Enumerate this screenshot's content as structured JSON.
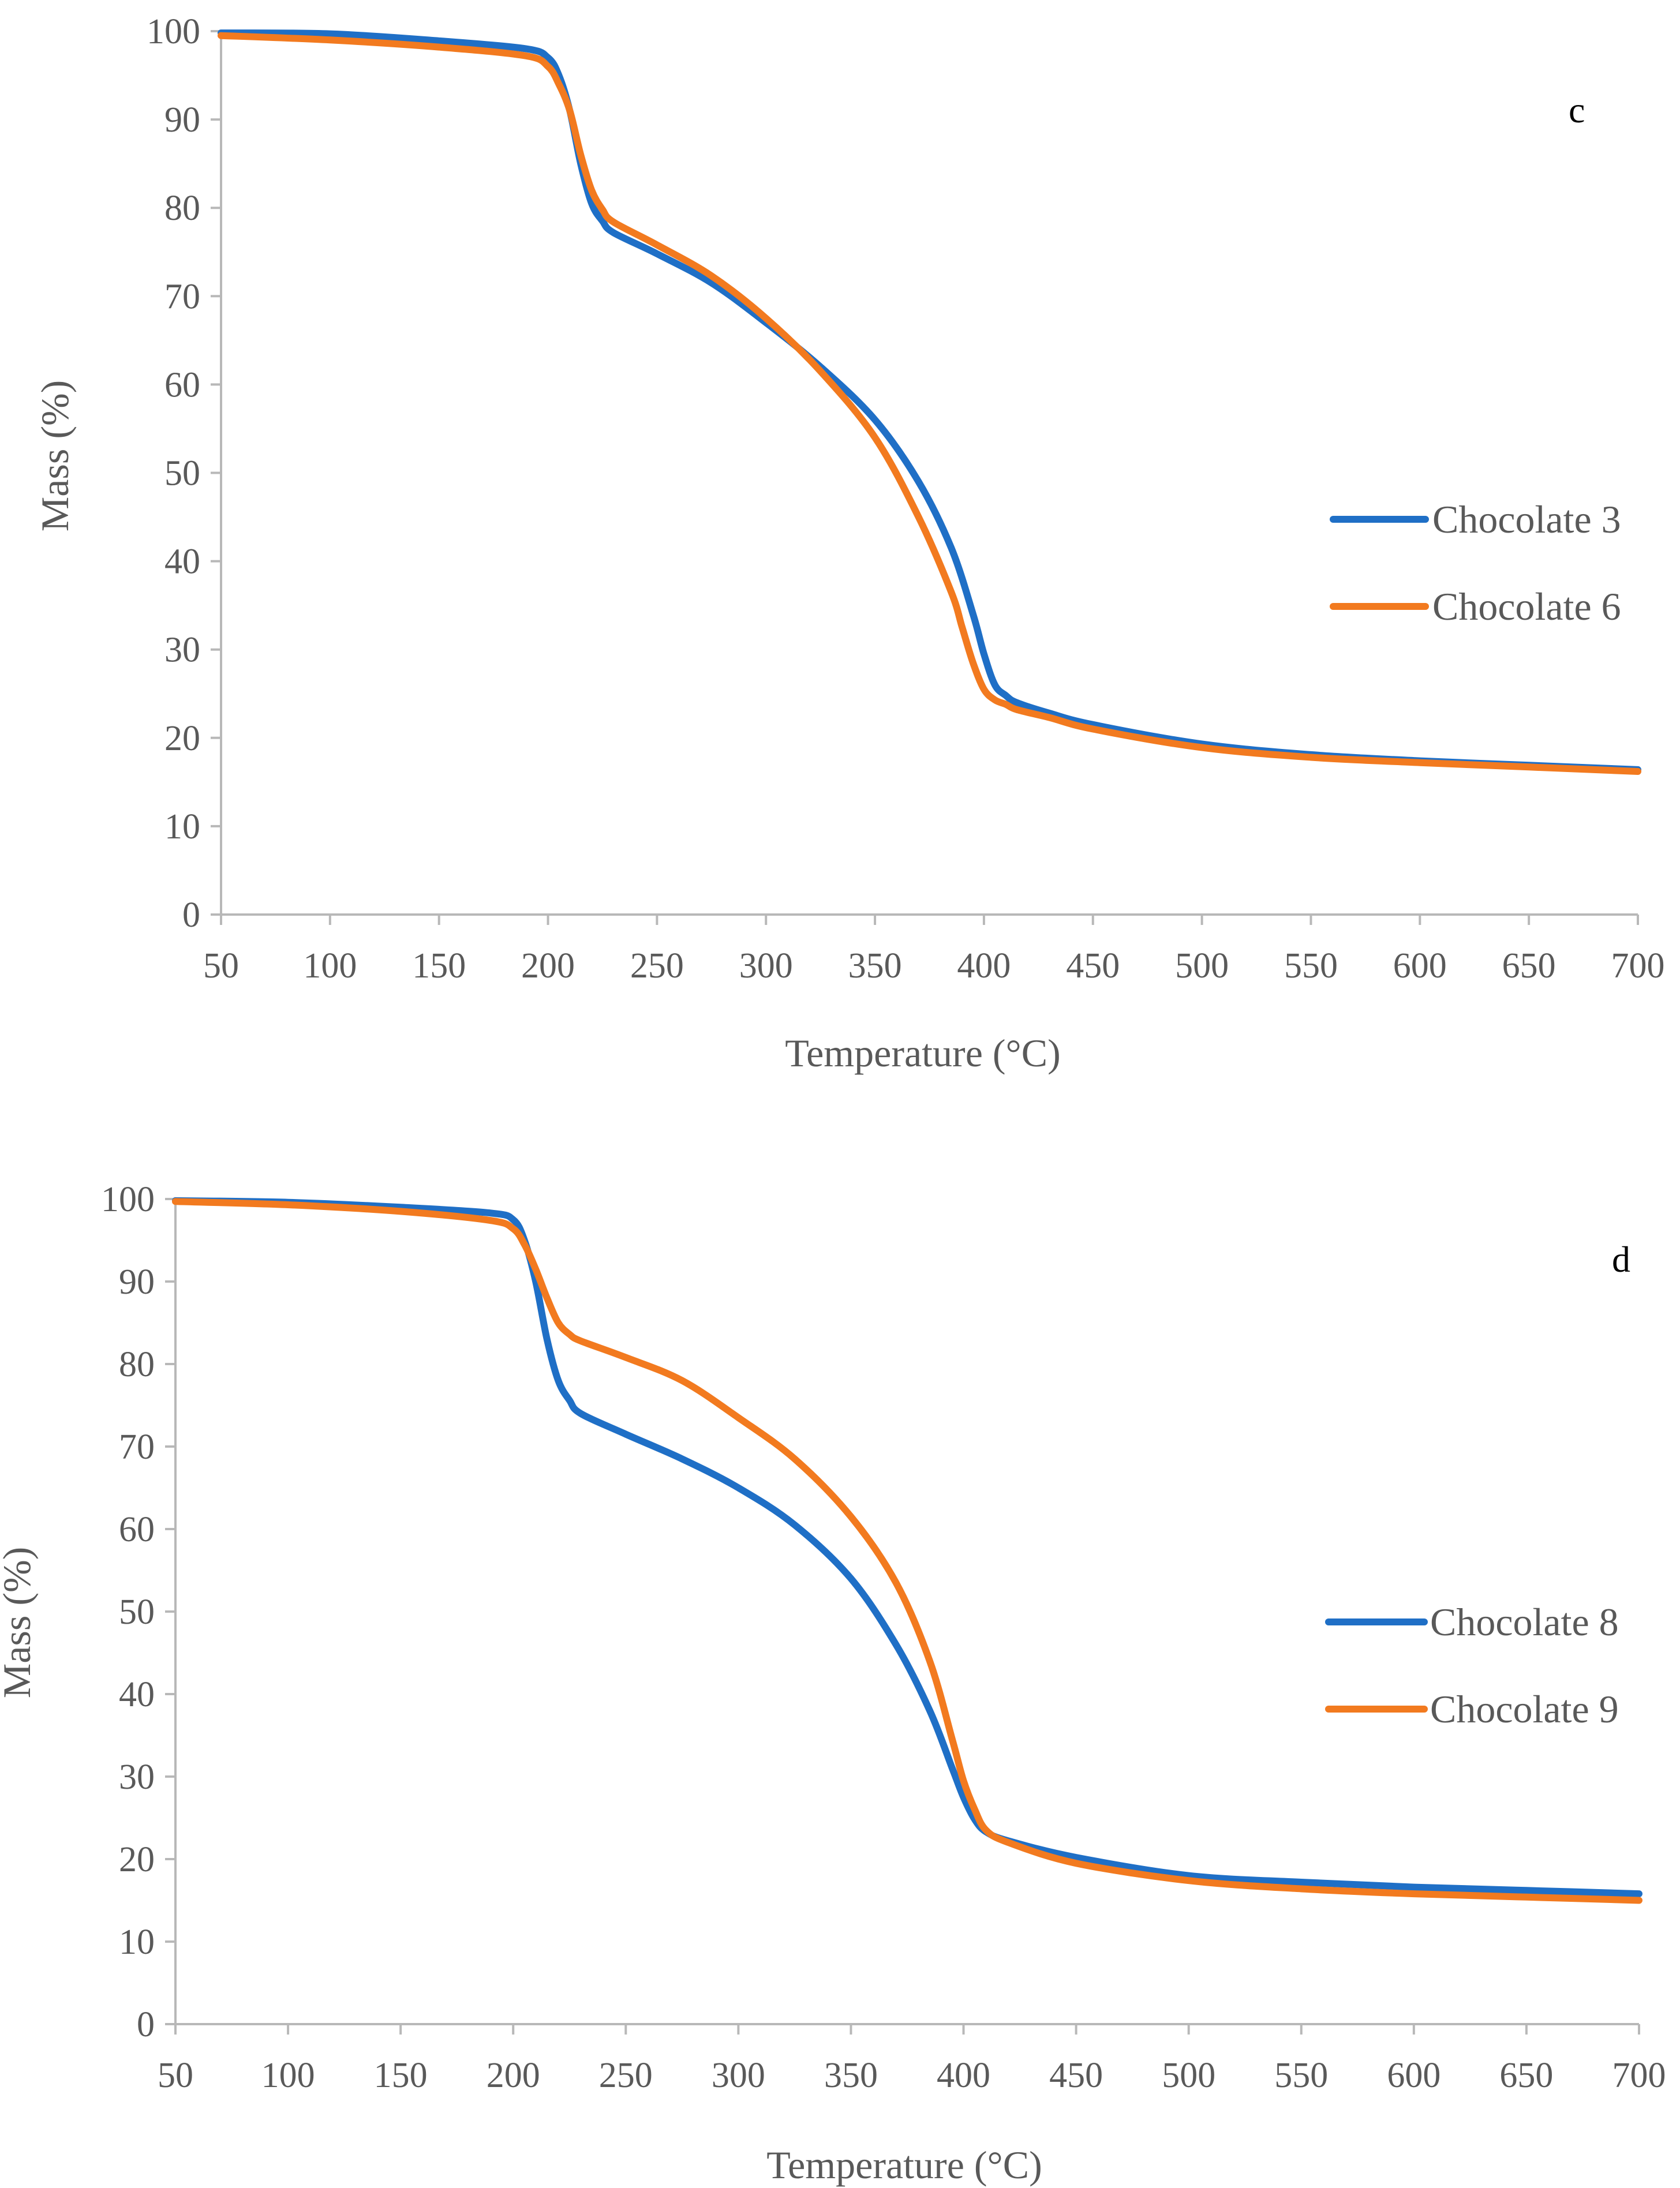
{
  "chart_data": [
    {
      "type": "line",
      "panel_label": "c",
      "xlabel": "Temperature (°C)",
      "ylabel": "Mass (%)",
      "xlim": [
        50,
        700
      ],
      "ylim": [
        0,
        100
      ],
      "x_ticks": [
        50,
        100,
        150,
        200,
        250,
        300,
        350,
        400,
        450,
        500,
        550,
        600,
        650,
        700
      ],
      "y_ticks": [
        0,
        10,
        20,
        30,
        40,
        50,
        60,
        70,
        80,
        90,
        100
      ],
      "legend_position": "right",
      "series": [
        {
          "name": "Chocolate 3",
          "color": "#1f6fc6",
          "x": [
            50,
            100,
            150,
            190,
            200,
            205,
            210,
            215,
            220,
            225,
            230,
            250,
            275,
            300,
            325,
            350,
            370,
            385,
            395,
            400,
            405,
            410,
            415,
            430,
            450,
            500,
            550,
            600,
            650,
            700
          ],
          "y": [
            99.8,
            99.7,
            98.9,
            98.0,
            97.0,
            95.0,
            91.0,
            85.0,
            80.5,
            78.5,
            77.2,
            74.8,
            71.5,
            67.0,
            62.0,
            56.0,
            49.0,
            41.5,
            34.0,
            29.5,
            26.0,
            24.8,
            24.0,
            22.8,
            21.5,
            19.3,
            18.1,
            17.4,
            16.9,
            16.4
          ]
        },
        {
          "name": "Chocolate 6",
          "color": "#f27a1f",
          "x": [
            50,
            100,
            150,
            190,
            200,
            205,
            210,
            215,
            220,
            225,
            230,
            250,
            275,
            300,
            325,
            350,
            370,
            385,
            390,
            395,
            400,
            405,
            410,
            415,
            430,
            450,
            500,
            550,
            600,
            650,
            700
          ],
          "y": [
            99.5,
            99.0,
            98.2,
            97.2,
            96.0,
            94.0,
            91.0,
            86.0,
            82.0,
            79.8,
            78.4,
            75.8,
            72.3,
            67.5,
            61.5,
            54.0,
            45.0,
            36.5,
            32.5,
            28.5,
            25.5,
            24.3,
            23.8,
            23.2,
            22.3,
            21.0,
            18.9,
            17.8,
            17.2,
            16.7,
            16.2
          ]
        }
      ]
    },
    {
      "type": "line",
      "panel_label": "d",
      "xlabel": "Temperature (°C)",
      "ylabel": "Mass (%)",
      "xlim": [
        50,
        700
      ],
      "ylim": [
        0,
        100
      ],
      "x_ticks": [
        50,
        100,
        150,
        200,
        250,
        300,
        350,
        400,
        450,
        500,
        550,
        600,
        650,
        700
      ],
      "y_ticks": [
        0,
        10,
        20,
        30,
        40,
        50,
        60,
        70,
        80,
        90,
        100
      ],
      "legend_position": "right",
      "series": [
        {
          "name": "Chocolate 8",
          "color": "#1f6fc6",
          "x": [
            50,
            100,
            150,
            190,
            200,
            205,
            210,
            215,
            220,
            225,
            230,
            250,
            275,
            300,
            325,
            350,
            370,
            385,
            395,
            400,
            405,
            410,
            420,
            450,
            500,
            550,
            600,
            650,
            700
          ],
          "y": [
            99.8,
            99.6,
            99.0,
            98.3,
            97.5,
            95.0,
            90.0,
            83.0,
            78.0,
            75.6,
            74.0,
            71.5,
            68.5,
            65.0,
            60.5,
            54.0,
            46.0,
            38.0,
            31.0,
            27.5,
            24.8,
            23.3,
            22.2,
            20.2,
            18.0,
            17.2,
            16.6,
            16.2,
            15.8
          ]
        },
        {
          "name": "Chocolate 9",
          "color": "#f27a1f",
          "x": [
            50,
            100,
            150,
            190,
            200,
            205,
            210,
            215,
            220,
            225,
            230,
            250,
            275,
            300,
            325,
            350,
            370,
            385,
            395,
            400,
            405,
            410,
            420,
            450,
            500,
            550,
            600,
            650,
            700
          ],
          "y": [
            99.7,
            99.3,
            98.5,
            97.4,
            96.4,
            94.5,
            91.5,
            88.0,
            85.0,
            83.6,
            82.8,
            80.8,
            78.0,
            73.5,
            68.5,
            61.5,
            53.5,
            44.0,
            34.5,
            29.5,
            26.0,
            23.5,
            22.0,
            19.5,
            17.4,
            16.4,
            15.8,
            15.4,
            15.0
          ]
        }
      ]
    }
  ]
}
